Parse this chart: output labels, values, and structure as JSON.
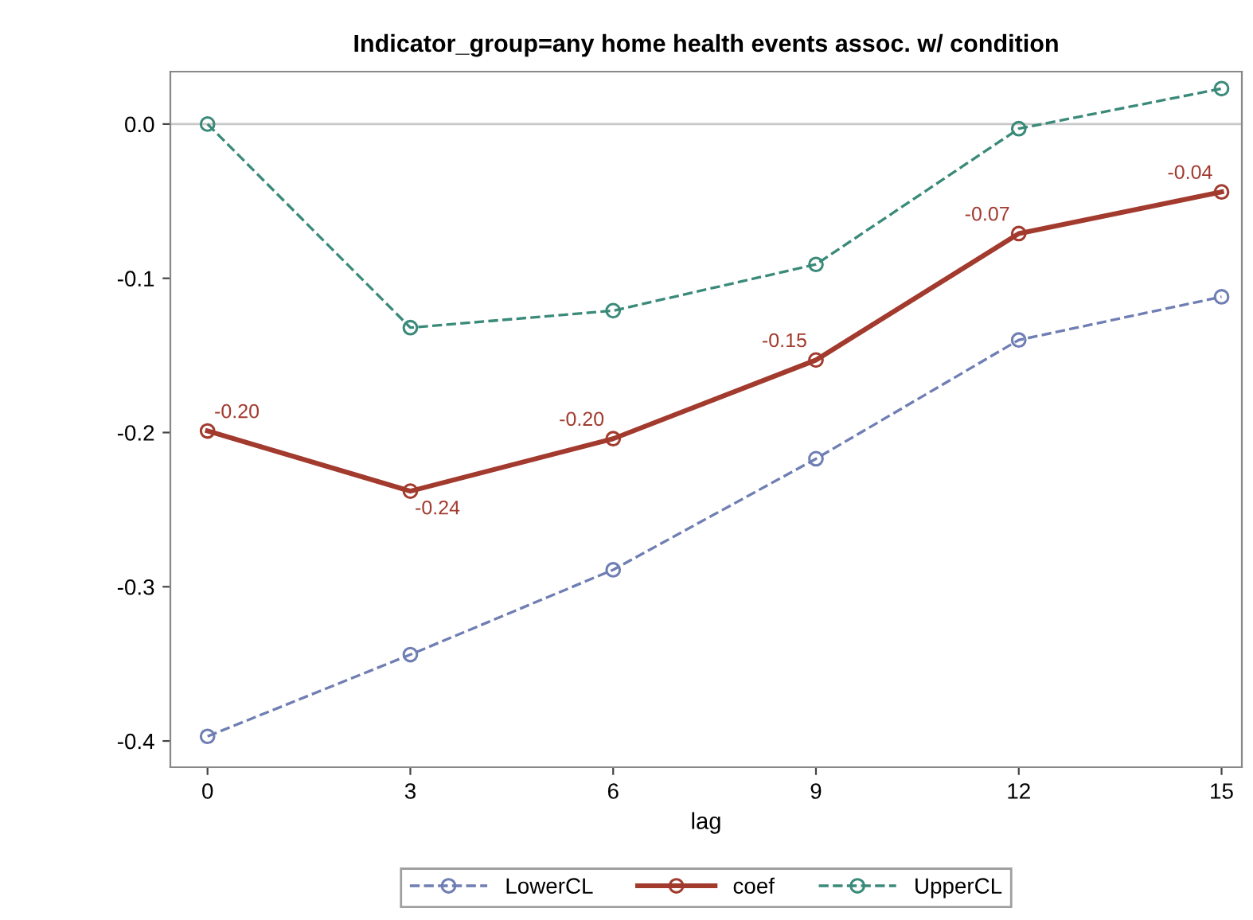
{
  "chart_data": {
    "type": "line",
    "title": "Indicator_group=any home health events assoc. w/ condition",
    "xlabel": "lag",
    "x": [
      0,
      3,
      6,
      9,
      12,
      15
    ],
    "series": [
      {
        "name": "LowerCL",
        "color": "#6f7eb3",
        "line_style": "dashed",
        "values": [
          -0.397,
          -0.344,
          -0.289,
          -0.217,
          -0.14,
          -0.112
        ]
      },
      {
        "name": "coef",
        "color": "#a23a2e",
        "line_style": "solid",
        "values": [
          -0.199,
          -0.238,
          -0.204,
          -0.153,
          -0.071,
          -0.044
        ],
        "value_labels": [
          "-0.20",
          "-0.24",
          "-0.20",
          "-0.15",
          "-0.07",
          "-0.04"
        ]
      },
      {
        "name": "UpperCL",
        "color": "#3a8a7a",
        "line_style": "dashed",
        "values": [
          0.0,
          -0.132,
          -0.121,
          -0.091,
          -0.003,
          0.023
        ]
      }
    ],
    "xlim": [
      -0.55,
      15.3
    ],
    "ylim": [
      -0.417,
      0.034
    ],
    "xticks": [
      0,
      3,
      6,
      9,
      12,
      15
    ],
    "yticks": [
      {
        "value": -0.4,
        "label": "-0.4"
      },
      {
        "value": -0.3,
        "label": "-0.3"
      },
      {
        "value": -0.2,
        "label": "-0.2"
      },
      {
        "value": -0.1,
        "label": "-0.1"
      },
      {
        "value": 0,
        "label": "0.0"
      }
    ],
    "ref_lines": [
      {
        "axis": "y",
        "value": 0,
        "color": "#c8c8c8"
      }
    ],
    "marker": "circle",
    "grid": false,
    "legend": "bottom"
  }
}
